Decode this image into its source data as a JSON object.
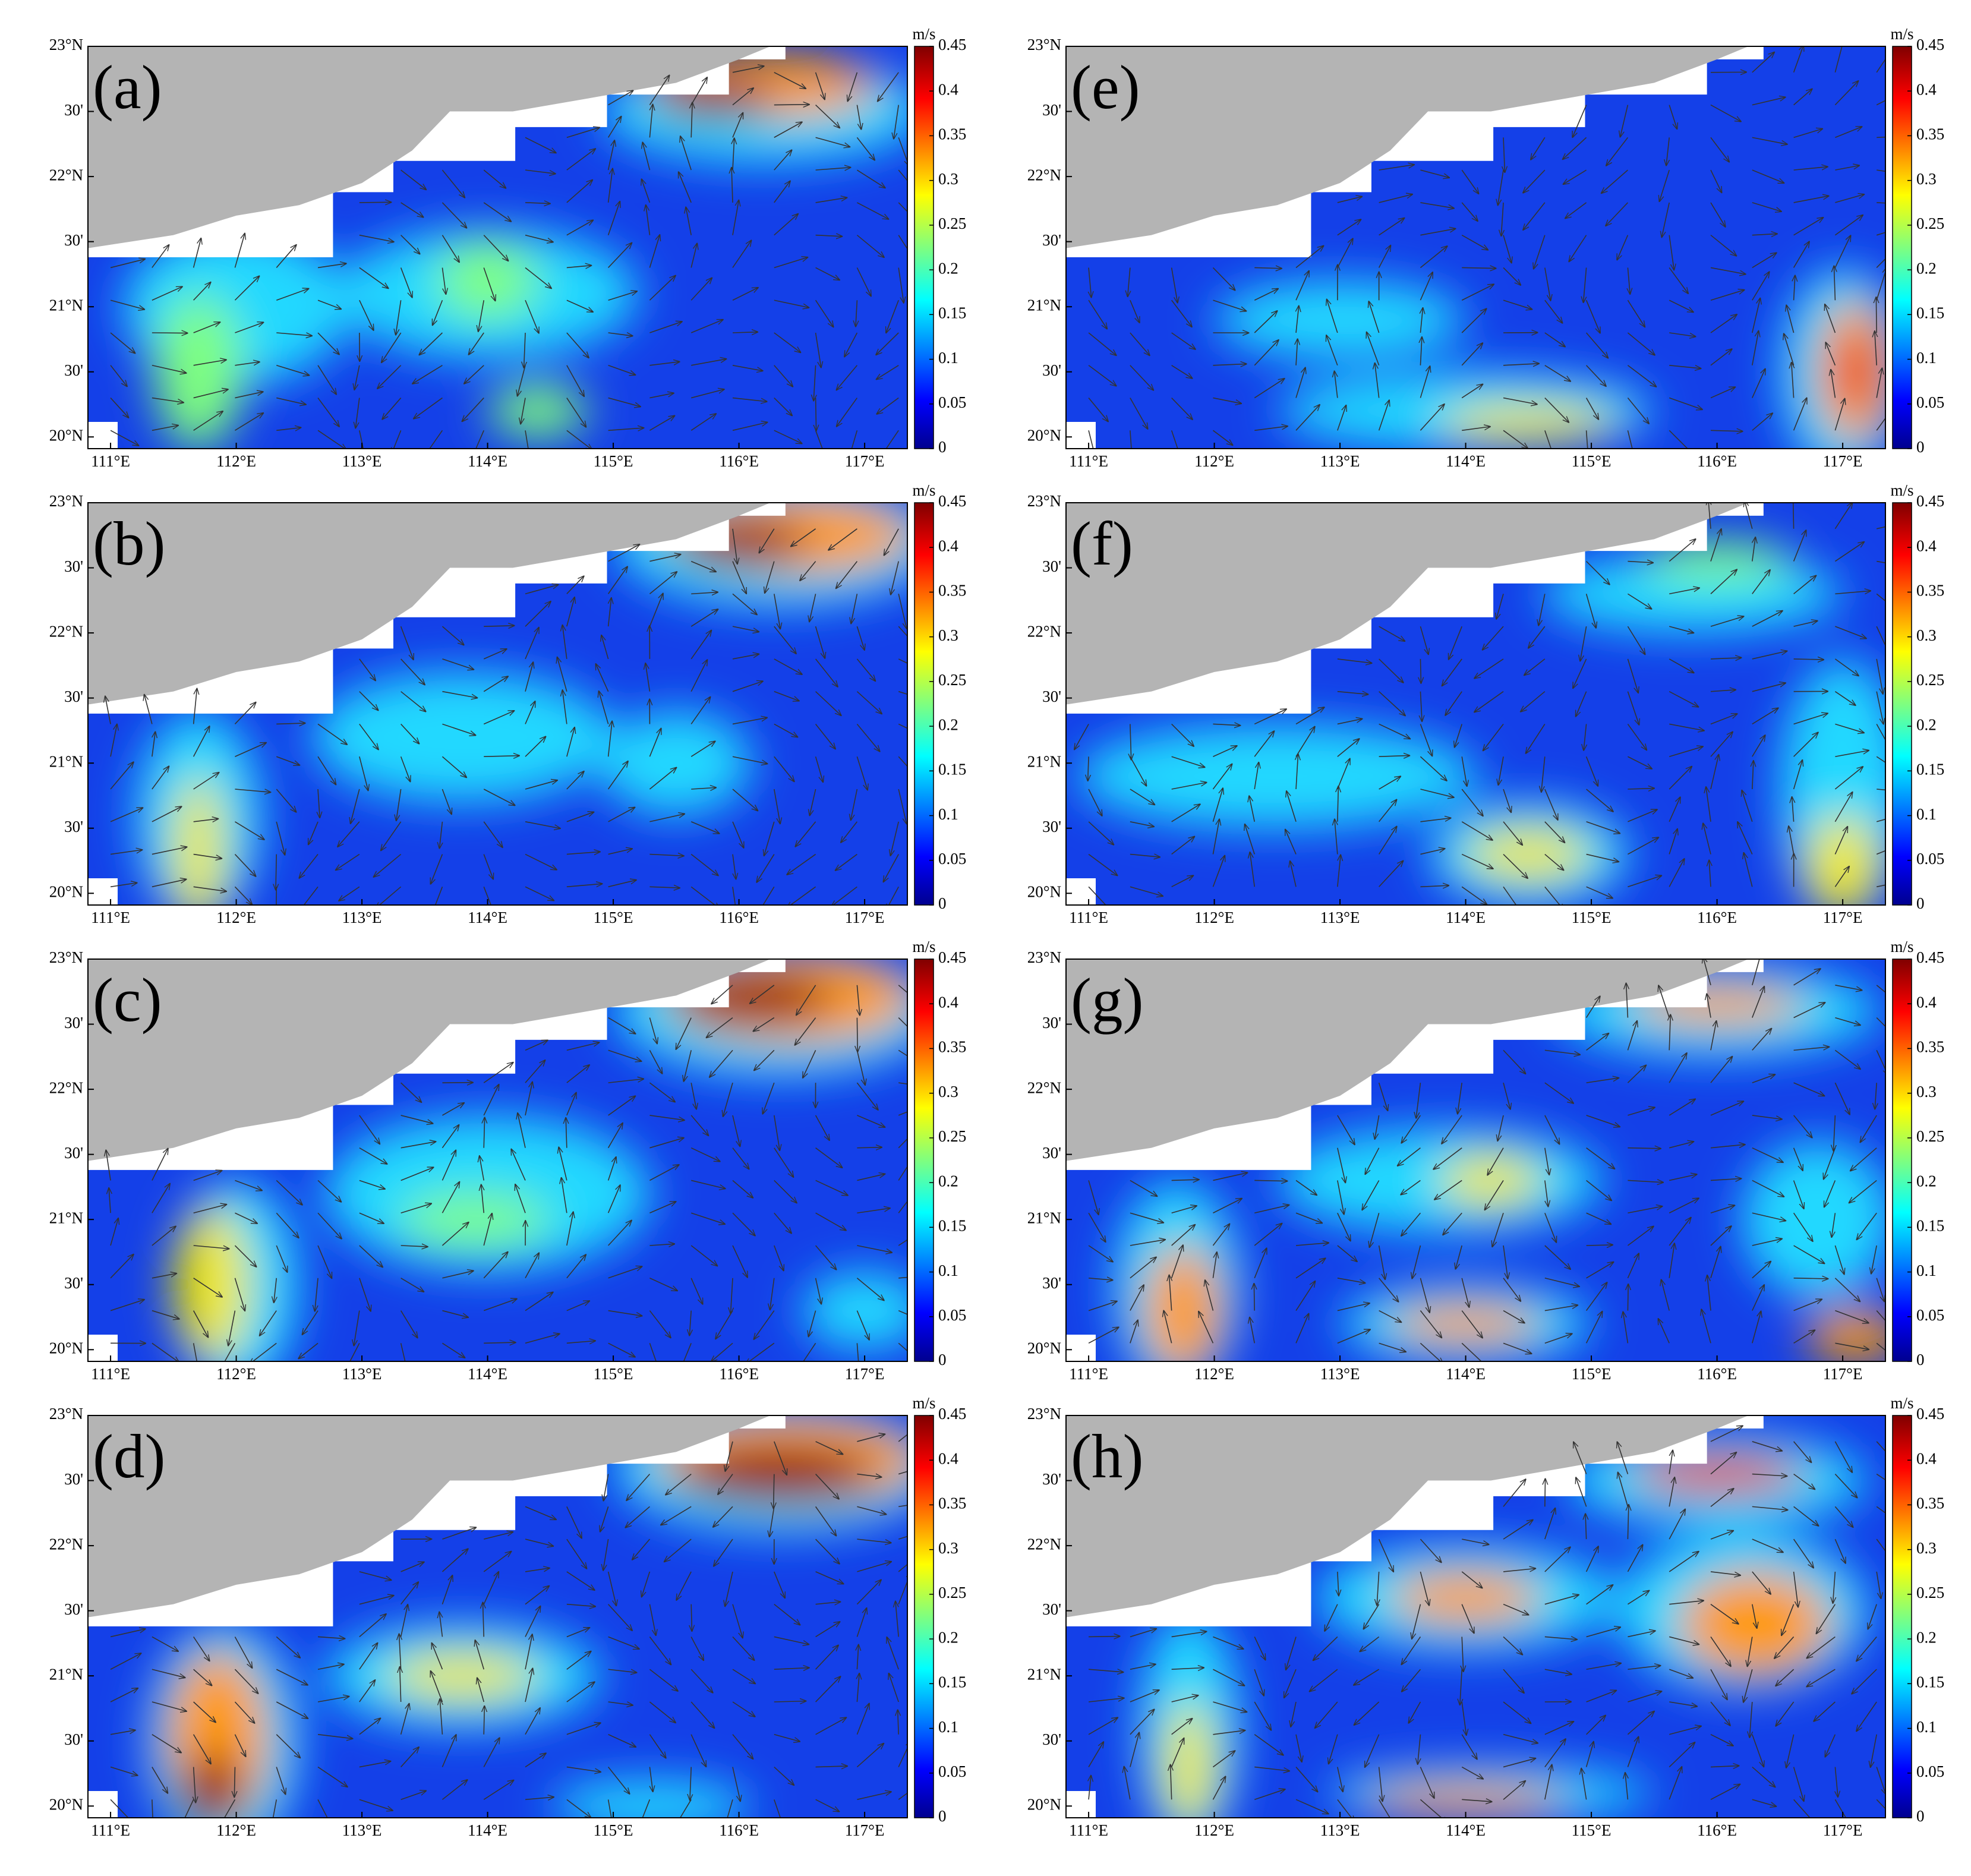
{
  "panels": [
    {
      "label": "(a)"
    },
    {
      "label": "(b)"
    },
    {
      "label": "(c)"
    },
    {
      "label": "(d)"
    },
    {
      "label": "(e)"
    },
    {
      "label": "(f)"
    },
    {
      "label": "(g)"
    },
    {
      "label": "(h)"
    }
  ],
  "axes": {
    "lon_range": [
      110.82,
      117.34
    ],
    "lat_range": [
      19.91,
      23
    ],
    "lon_ticks": [
      {
        "value": 111,
        "label": "111°E"
      },
      {
        "value": 112,
        "label": "112°E"
      },
      {
        "value": 113,
        "label": "113°E"
      },
      {
        "value": 114,
        "label": "114°E"
      },
      {
        "value": 115,
        "label": "115°E"
      },
      {
        "value": 116,
        "label": "116°E"
      },
      {
        "value": 117,
        "label": "117°E"
      }
    ],
    "lat_ticks": [
      {
        "value": 23,
        "label": "23°N"
      },
      {
        "value": 22.5,
        "label": "30'"
      },
      {
        "value": 22,
        "label": "22°N"
      },
      {
        "value": 21.5,
        "label": "30'"
      },
      {
        "value": 21,
        "label": "21°N"
      },
      {
        "value": 20.5,
        "label": "30'"
      },
      {
        "value": 20,
        "label": "20°N"
      }
    ]
  },
  "colorbar": {
    "unit": "m/s",
    "range": [
      0,
      0.45
    ],
    "ticks": [
      0,
      0.05,
      0.1,
      0.15,
      0.2,
      0.25,
      0.3,
      0.35,
      0.4,
      0.45
    ]
  }
}
